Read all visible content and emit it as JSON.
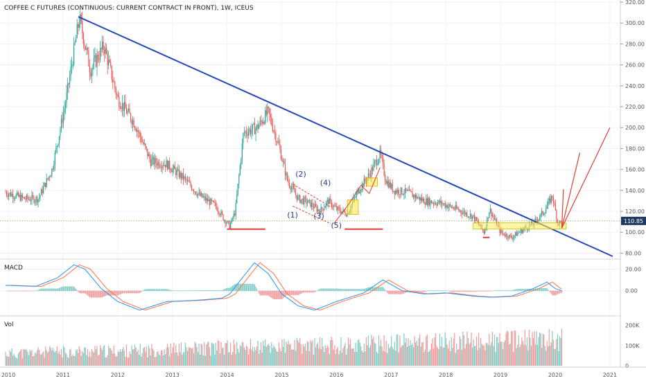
{
  "chart_data": {
    "type": "candlestick",
    "title": "COFFEE C FUTURES (CONTINUOUS: CURRENT CONTRACT IN FRONT), 1W, ICEUS",
    "last_price": "110.85",
    "x_ticks": [
      "2010",
      "2011",
      "2012",
      "2013",
      "2014",
      "2015",
      "2016",
      "2017",
      "2018",
      "2019",
      "2020",
      "2021"
    ],
    "price_axis": {
      "ticks": [
        "320.00",
        "300.00",
        "280.00",
        "260.00",
        "240.00",
        "220.00",
        "200.00",
        "180.00",
        "160.00",
        "140.00",
        "120.00",
        "100.00",
        "80.00"
      ],
      "ylim": [
        75,
        322
      ]
    },
    "price_anchors": {
      "t": [
        2009.95,
        2010.3,
        2010.55,
        2010.8,
        2011.05,
        2011.3,
        2011.5,
        2011.75,
        2012.0,
        2012.3,
        2012.6,
        2012.9,
        2013.2,
        2013.5,
        2013.8,
        2013.95,
        2014.05,
        2014.15,
        2014.3,
        2014.55,
        2014.75,
        2014.95,
        2015.1,
        2015.3,
        2015.5,
        2015.7,
        2015.85,
        2016.0,
        2016.2,
        2016.4,
        2016.6,
        2016.8,
        2016.9,
        2017.05,
        2017.3,
        2017.6,
        2017.9,
        2018.2,
        2018.5,
        2018.7,
        2018.8,
        2019.0,
        2019.2,
        2019.45,
        2019.6,
        2019.8,
        2019.95,
        2020.05,
        2020.12
      ],
      "v": [
        138,
        132,
        132,
        160,
        225,
        305,
        255,
        278,
        228,
        205,
        168,
        165,
        152,
        135,
        125,
        112,
        106,
        120,
        195,
        200,
        215,
        182,
        150,
        132,
        128,
        120,
        130,
        122,
        118,
        140,
        155,
        175,
        150,
        140,
        138,
        130,
        128,
        122,
        115,
        100,
        122,
        100,
        95,
        104,
        108,
        120,
        135,
        108,
        110
      ]
    },
    "macd": {
      "label": "MACD",
      "ticks": [
        "20.00",
        "0.00"
      ],
      "ylim": [
        -22,
        28
      ],
      "anchors": {
        "t": [
          2009.95,
          2010.5,
          2010.9,
          2011.2,
          2011.4,
          2011.7,
          2012.0,
          2012.4,
          2012.9,
          2013.4,
          2013.9,
          2014.05,
          2014.25,
          2014.5,
          2014.75,
          2015.0,
          2015.3,
          2015.6,
          2016.0,
          2016.5,
          2016.85,
          2017.2,
          2017.6,
          2018.0,
          2018.5,
          2018.8,
          2019.2,
          2019.6,
          2019.85,
          2020.0,
          2020.12
        ],
        "v": [
          5,
          4,
          12,
          24,
          20,
          2,
          -10,
          -18,
          -10,
          -9,
          -7,
          -3,
          10,
          26,
          16,
          -3,
          -14,
          -18,
          -10,
          -2,
          10,
          0,
          -3,
          -2,
          -5,
          -6,
          -5,
          2,
          8,
          2,
          0
        ]
      }
    },
    "volume": {
      "label": "Vol",
      "ticks": [
        "200K",
        "100K",
        "0"
      ],
      "ylim": [
        0,
        240000
      ],
      "anchors": {
        "t": [
          2009.95,
          2011.0,
          2012.0,
          2013.0,
          2014.0,
          2015.0,
          2016.0,
          2017.0,
          2018.0,
          2019.0,
          2020.0,
          2020.12
        ],
        "v": [
          60000,
          70000,
          72000,
          80000,
          90000,
          95000,
          100000,
          110000,
          115000,
          120000,
          130000,
          135000
        ]
      }
    },
    "annotations": {
      "wave_labels": [
        "(1)",
        "(2)",
        "(3)",
        "(4)",
        "(5)"
      ]
    }
  }
}
